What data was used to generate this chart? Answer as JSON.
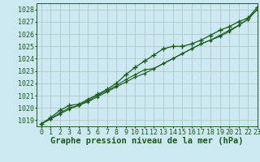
{
  "xlabel": "Graphe pression niveau de la mer (hPa)",
  "xlim": [
    -0.5,
    23
  ],
  "ylim": [
    1018.5,
    1028.5
  ],
  "yticks": [
    1019,
    1020,
    1021,
    1022,
    1023,
    1024,
    1025,
    1026,
    1027,
    1028
  ],
  "xticks": [
    0,
    1,
    2,
    3,
    4,
    5,
    6,
    7,
    8,
    9,
    10,
    11,
    12,
    13,
    14,
    15,
    16,
    17,
    18,
    19,
    20,
    21,
    22,
    23
  ],
  "background_color": "#cce8f0",
  "grid_color": "#b0c8cc",
  "line_color": "#1a5c1a",
  "hours": [
    0,
    1,
    2,
    3,
    4,
    5,
    6,
    7,
    8,
    9,
    10,
    11,
    12,
    13,
    14,
    15,
    16,
    17,
    18,
    19,
    20,
    21,
    22,
    23
  ],
  "line1": [
    1018.7,
    1019.1,
    1019.5,
    1019.9,
    1020.2,
    1020.5,
    1020.9,
    1021.3,
    1021.7,
    1022.1,
    1022.5,
    1022.8,
    1023.2,
    1023.6,
    1024.0,
    1024.4,
    1024.8,
    1025.2,
    1025.5,
    1025.8,
    1026.2,
    1026.7,
    1027.2,
    1028.0
  ],
  "line2": [
    1018.7,
    1019.1,
    1019.6,
    1020.0,
    1020.2,
    1020.6,
    1021.0,
    1021.4,
    1021.8,
    1022.3,
    1022.7,
    1023.1,
    1023.2,
    1023.6,
    1024.0,
    1024.4,
    1024.8,
    1025.2,
    1025.5,
    1025.9,
    1026.3,
    1026.7,
    1027.2,
    1028.0
  ],
  "line3": [
    1018.7,
    1019.2,
    1019.8,
    1020.2,
    1020.3,
    1020.7,
    1021.1,
    1021.5,
    1022.0,
    1022.7,
    1023.3,
    1023.8,
    1024.3,
    1024.8,
    1025.0,
    1025.0,
    1025.2,
    1025.5,
    1025.9,
    1026.3,
    1026.6,
    1027.0,
    1027.3,
    1028.2
  ],
  "title_fontsize": 7.5,
  "tick_fontsize": 6.0
}
